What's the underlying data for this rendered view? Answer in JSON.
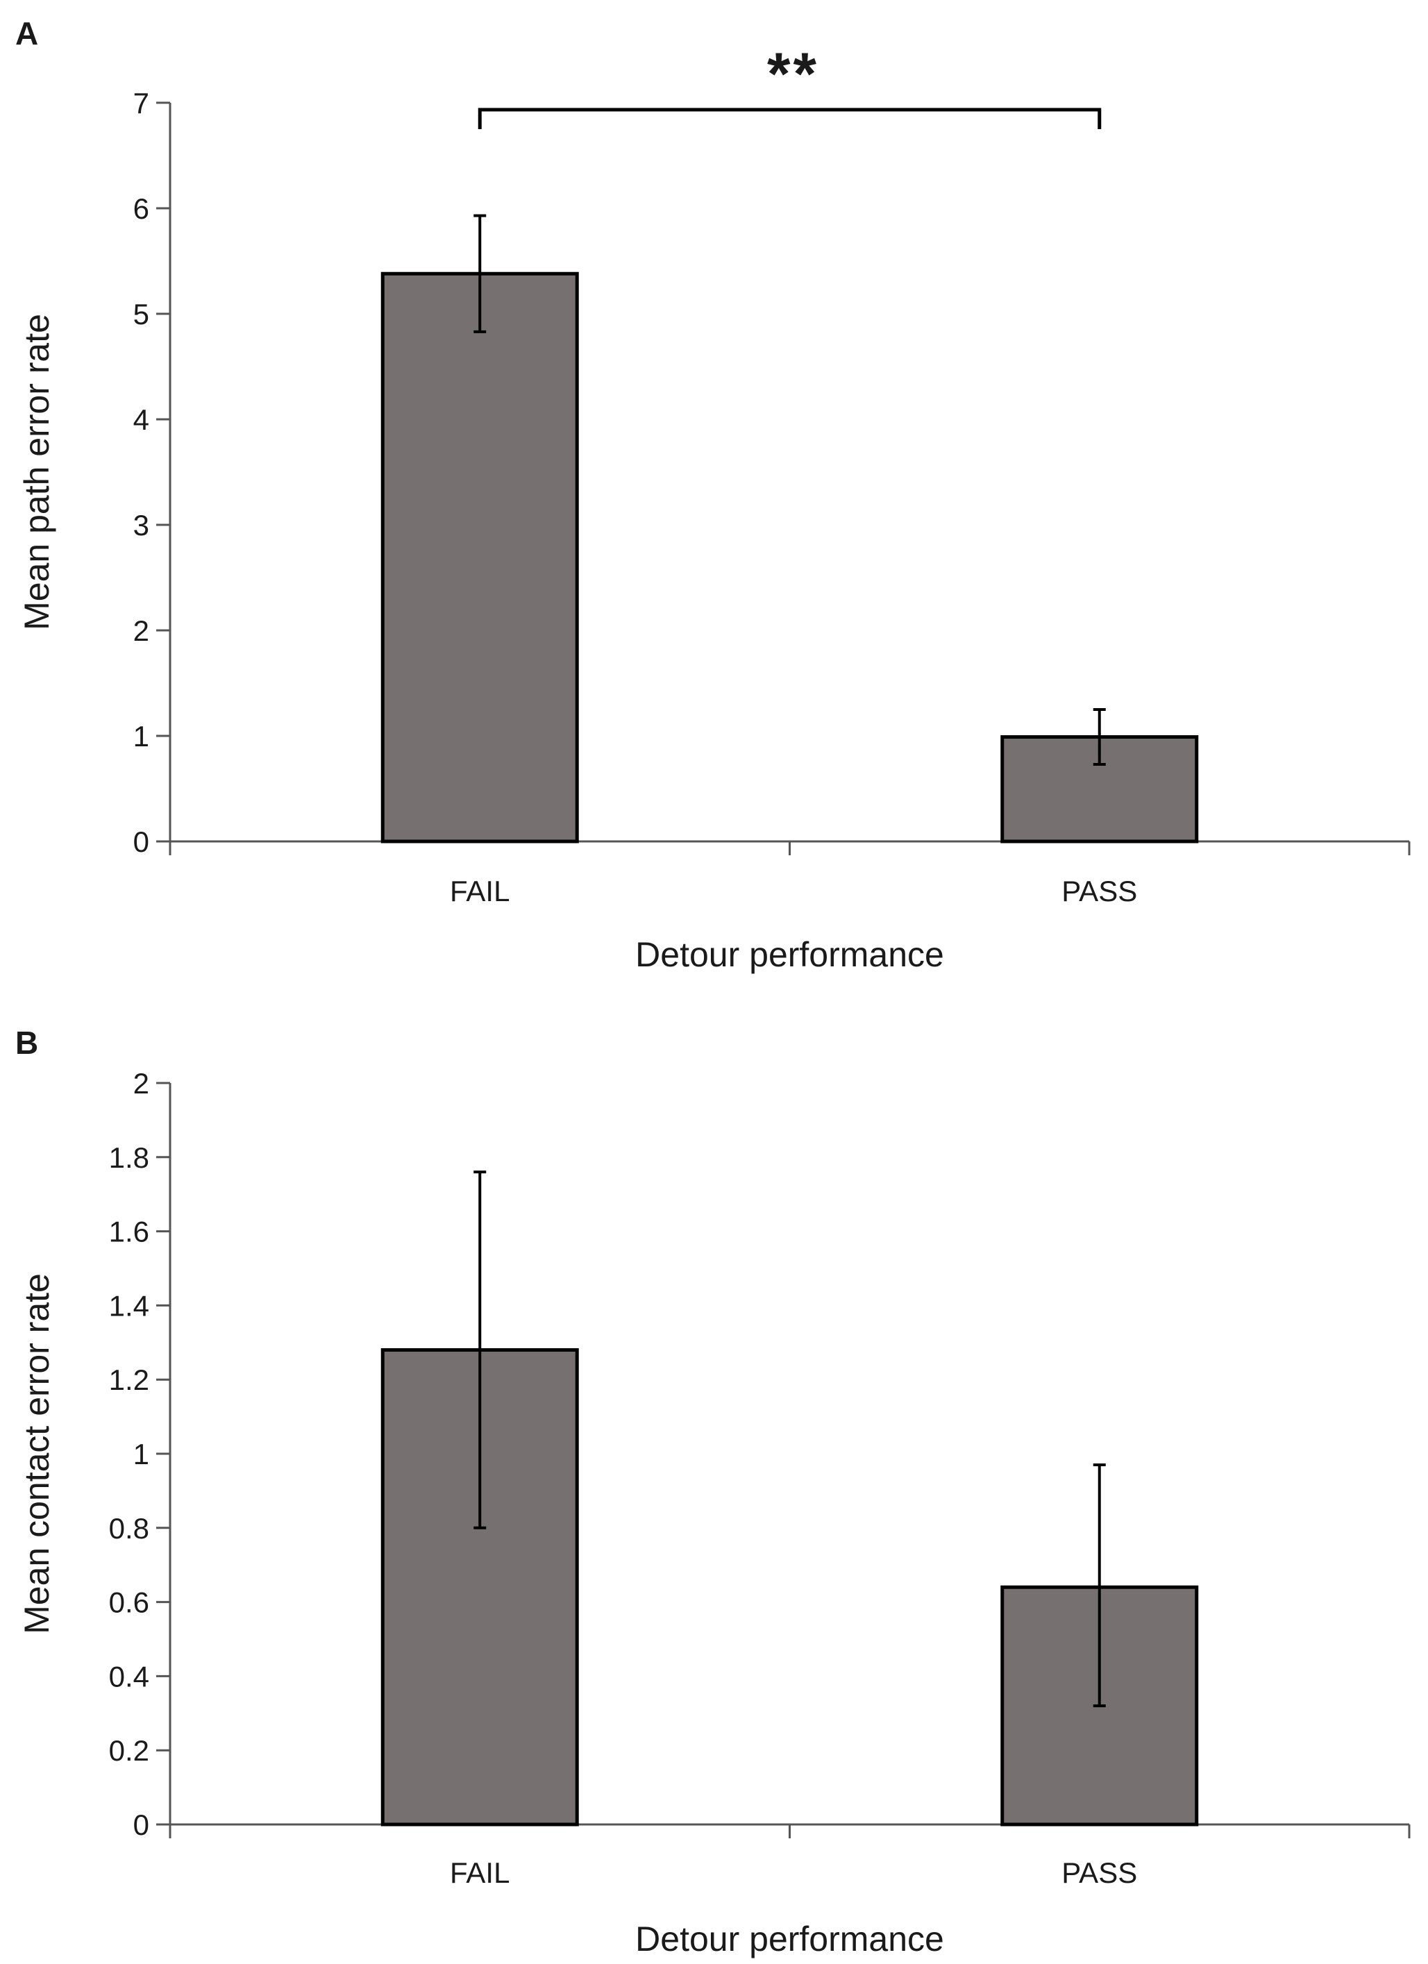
{
  "chart_data": [
    {
      "type": "bar",
      "panel": "A",
      "categories": [
        "FAIL",
        "PASS"
      ],
      "values": [
        5.38,
        0.99
      ],
      "error_low": [
        4.83,
        0.73
      ],
      "error_high": [
        5.93,
        1.25
      ],
      "xlabel": "Detour performance",
      "ylabel": "Mean path error rate",
      "ylim": [
        0,
        7
      ],
      "yticks": [
        0,
        1,
        2,
        3,
        4,
        5,
        6,
        7
      ],
      "ytick_labels": [
        "0",
        "1",
        "2",
        "3",
        "4",
        "5",
        "6",
        "7"
      ],
      "bar_color": "#767170",
      "grid": false,
      "significance": {
        "label": "**",
        "between": [
          "FAIL",
          "PASS"
        ]
      }
    },
    {
      "type": "bar",
      "panel": "B",
      "categories": [
        "FAIL",
        "PASS"
      ],
      "values": [
        1.28,
        0.64
      ],
      "error_low": [
        0.8,
        0.32
      ],
      "error_high": [
        1.76,
        0.97
      ],
      "xlabel": "Detour performance",
      "ylabel": "Mean contact error rate",
      "ylim": [
        0,
        2
      ],
      "yticks": [
        0,
        0.2,
        0.4,
        0.6,
        0.8,
        1,
        1.2,
        1.4,
        1.6,
        1.8,
        2
      ],
      "ytick_labels": [
        "0",
        "0.2",
        "0.4",
        "0.6",
        "0.8",
        "1",
        "1.2",
        "1.4",
        "1.6",
        "1.8",
        "2"
      ],
      "bar_color": "#767170",
      "grid": false
    }
  ]
}
